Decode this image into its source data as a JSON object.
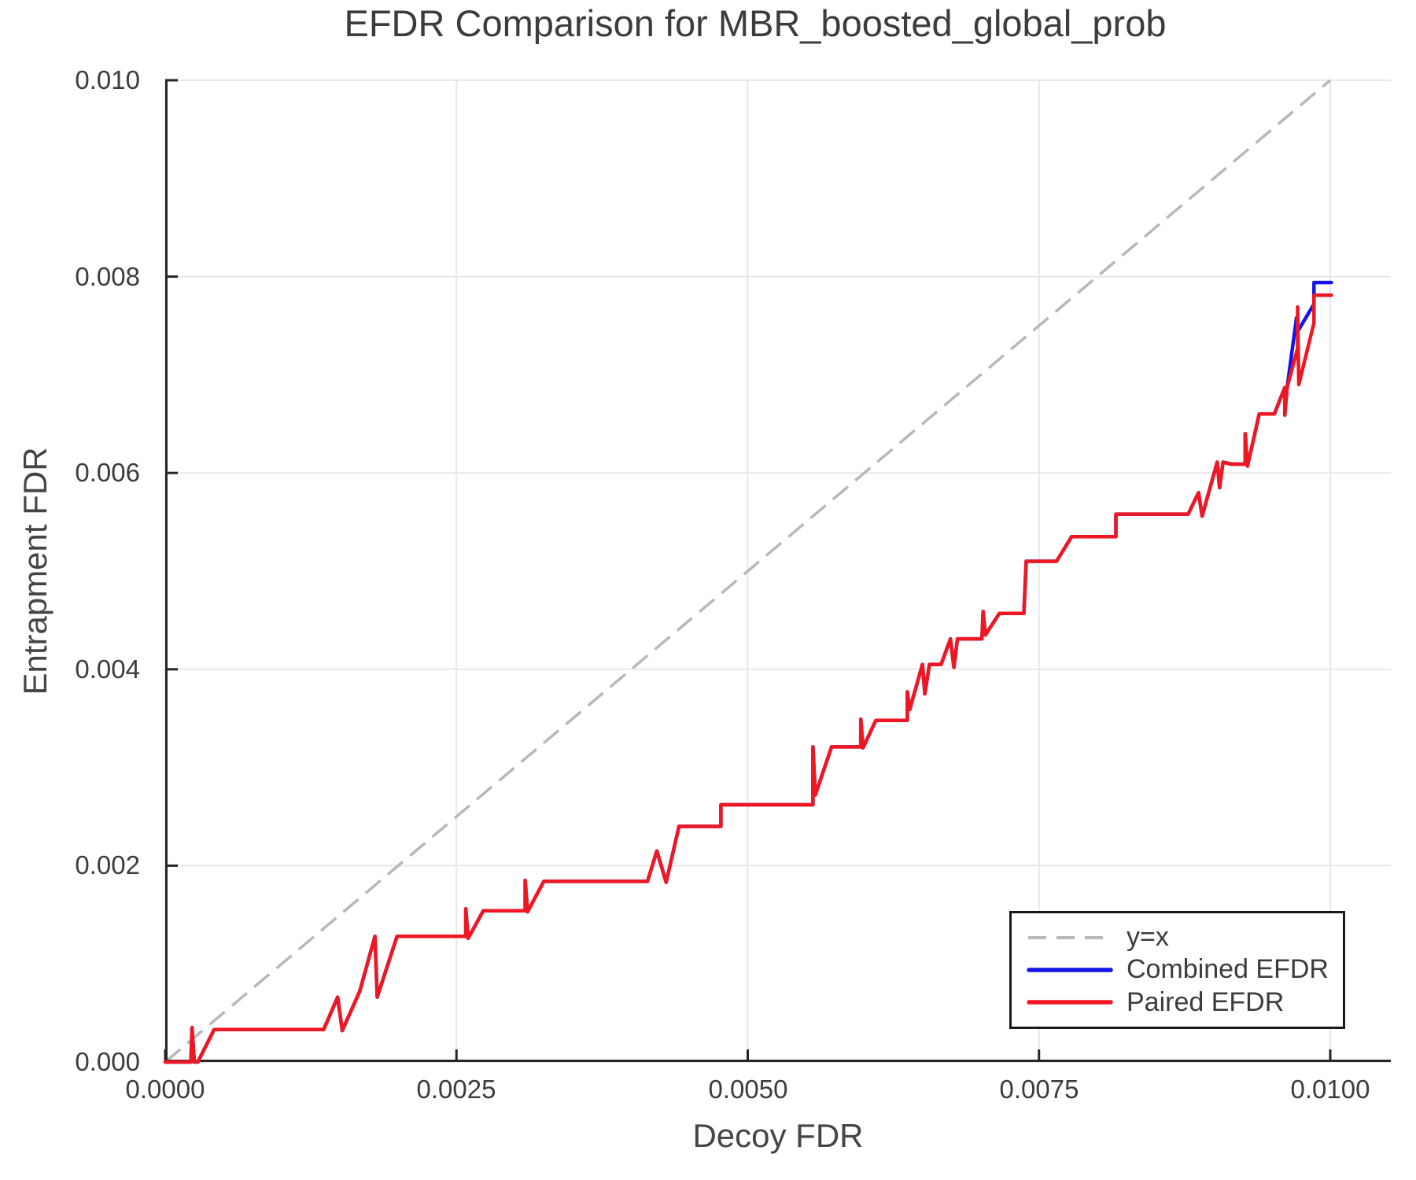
{
  "legend": {
    "items": [
      {
        "label": "y=x",
        "color": "#b8b8b8",
        "style": "dashed"
      },
      {
        "label": "Combined EFDR",
        "color": "#1414e8",
        "style": "solid"
      },
      {
        "label": "Paired EFDR",
        "color": "#f01722",
        "style": "solid"
      }
    ]
  },
  "chart_data": {
    "type": "line",
    "title": "EFDR Comparison for MBR_boosted_global_prob",
    "xlabel": "Decoy FDR",
    "ylabel": "Entrapment FDR",
    "xlim": [
      0,
      0.010518
    ],
    "ylim": [
      0,
      0.01
    ],
    "grid": true,
    "legend_position": "lower right",
    "x_ticks": [
      0,
      0.0025,
      0.005,
      0.0075,
      0.01
    ],
    "x_tick_labels": [
      "0.0000",
      "0.0025",
      "0.0050",
      "0.0075",
      "0.0100"
    ],
    "y_ticks": [
      0,
      0.002,
      0.004,
      0.006,
      0.008,
      0.01
    ],
    "y_tick_labels": [
      "0.000",
      "0.002",
      "0.004",
      "0.006",
      "0.008",
      "0.010"
    ],
    "theme": {
      "grid_color": "#e8e8e8",
      "spine_color": "#262626",
      "tick_color": "#262626",
      "text_color": "#3c3c3c",
      "background": "#ffffff"
    },
    "reference_line": {
      "name": "y=x",
      "from": [
        0,
        0
      ],
      "to": [
        0.01,
        0.01
      ],
      "style": "dashed",
      "color": "#b8b8b8"
    },
    "series": [
      {
        "name": "Combined EFDR",
        "color": "#1414e8",
        "points": [
          [
            0.0,
            0.0
          ],
          [
            0.00022,
            0.0
          ],
          [
            0.00023,
            0.00035
          ],
          [
            0.00025,
            0.0
          ],
          [
            0.00028,
            0.0
          ],
          [
            0.00042,
            0.00033
          ],
          [
            0.00136,
            0.00033
          ],
          [
            0.00148,
            0.00066
          ],
          [
            0.00152,
            0.00032
          ],
          [
            0.00167,
            0.00072
          ],
          [
            0.0018,
            0.00128
          ],
          [
            0.00182,
            0.00066
          ],
          [
            0.00199,
            0.00128
          ],
          [
            0.00258,
            0.00128
          ],
          [
            0.00258,
            0.00156
          ],
          [
            0.0026,
            0.00126
          ],
          [
            0.00273,
            0.00154
          ],
          [
            0.00309,
            0.00154
          ],
          [
            0.00309,
            0.00185
          ],
          [
            0.00311,
            0.00153
          ],
          [
            0.00325,
            0.00184
          ],
          [
            0.00414,
            0.00184
          ],
          [
            0.00422,
            0.00215
          ],
          [
            0.0043,
            0.00183
          ],
          [
            0.00441,
            0.0024
          ],
          [
            0.00477,
            0.0024
          ],
          [
            0.00477,
            0.00262
          ],
          [
            0.00556,
            0.00262
          ],
          [
            0.00556,
            0.00321
          ],
          [
            0.00558,
            0.00272
          ],
          [
            0.00572,
            0.00321
          ],
          [
            0.00597,
            0.00321
          ],
          [
            0.00597,
            0.00349
          ],
          [
            0.00599,
            0.0032
          ],
          [
            0.0061,
            0.00348
          ],
          [
            0.00637,
            0.00348
          ],
          [
            0.00637,
            0.00377
          ],
          [
            0.00639,
            0.00359
          ],
          [
            0.0065,
            0.00405
          ],
          [
            0.00652,
            0.00375
          ],
          [
            0.00656,
            0.00405
          ],
          [
            0.00666,
            0.00405
          ],
          [
            0.00674,
            0.00431
          ],
          [
            0.00677,
            0.00402
          ],
          [
            0.0068,
            0.00431
          ],
          [
            0.00701,
            0.00431
          ],
          [
            0.00702,
            0.00459
          ],
          [
            0.00704,
            0.00435
          ],
          [
            0.00716,
            0.00457
          ],
          [
            0.00737,
            0.00457
          ],
          [
            0.00739,
            0.0051
          ],
          [
            0.00765,
            0.0051
          ],
          [
            0.00778,
            0.00535
          ],
          [
            0.00816,
            0.00535
          ],
          [
            0.00816,
            0.00558
          ],
          [
            0.00878,
            0.00558
          ],
          [
            0.00887,
            0.0058
          ],
          [
            0.0089,
            0.00556
          ],
          [
            0.00903,
            0.00611
          ],
          [
            0.00905,
            0.00585
          ],
          [
            0.00908,
            0.00611
          ],
          [
            0.00915,
            0.00609
          ],
          [
            0.00927,
            0.00609
          ],
          [
            0.00927,
            0.0064
          ],
          [
            0.00929,
            0.00607
          ],
          [
            0.00939,
            0.0066
          ],
          [
            0.00952,
            0.0066
          ],
          [
            0.00961,
            0.00687
          ],
          [
            0.00961,
            0.00659
          ],
          [
            0.00963,
            0.00687
          ],
          [
            0.00971,
            0.00758
          ],
          [
            0.00972,
            0.00744
          ],
          [
            0.00986,
            0.00772
          ],
          [
            0.00986,
            0.00794
          ],
          [
            0.01001,
            0.00794
          ]
        ]
      },
      {
        "name": "Paired EFDR",
        "color": "#f01722",
        "points": [
          [
            0.0,
            0.0
          ],
          [
            0.00022,
            0.0
          ],
          [
            0.00023,
            0.00035
          ],
          [
            0.00025,
            0.0
          ],
          [
            0.00028,
            0.0
          ],
          [
            0.00042,
            0.00033
          ],
          [
            0.00136,
            0.00033
          ],
          [
            0.00148,
            0.00066
          ],
          [
            0.00152,
            0.00032
          ],
          [
            0.00167,
            0.00072
          ],
          [
            0.0018,
            0.00128
          ],
          [
            0.00182,
            0.00066
          ],
          [
            0.00199,
            0.00128
          ],
          [
            0.00258,
            0.00128
          ],
          [
            0.00258,
            0.00156
          ],
          [
            0.0026,
            0.00126
          ],
          [
            0.00273,
            0.00154
          ],
          [
            0.00309,
            0.00154
          ],
          [
            0.00309,
            0.00185
          ],
          [
            0.00311,
            0.00153
          ],
          [
            0.00325,
            0.00184
          ],
          [
            0.00414,
            0.00184
          ],
          [
            0.00422,
            0.00215
          ],
          [
            0.0043,
            0.00183
          ],
          [
            0.00441,
            0.0024
          ],
          [
            0.00477,
            0.0024
          ],
          [
            0.00477,
            0.00262
          ],
          [
            0.00556,
            0.00262
          ],
          [
            0.00556,
            0.00321
          ],
          [
            0.00558,
            0.00272
          ],
          [
            0.00572,
            0.00321
          ],
          [
            0.00597,
            0.00321
          ],
          [
            0.00597,
            0.00349
          ],
          [
            0.00599,
            0.0032
          ],
          [
            0.0061,
            0.00348
          ],
          [
            0.00637,
            0.00348
          ],
          [
            0.00637,
            0.00377
          ],
          [
            0.00639,
            0.00359
          ],
          [
            0.0065,
            0.00405
          ],
          [
            0.00652,
            0.00375
          ],
          [
            0.00656,
            0.00405
          ],
          [
            0.00666,
            0.00405
          ],
          [
            0.00674,
            0.00431
          ],
          [
            0.00677,
            0.00402
          ],
          [
            0.0068,
            0.00431
          ],
          [
            0.00701,
            0.00431
          ],
          [
            0.00702,
            0.00459
          ],
          [
            0.00704,
            0.00435
          ],
          [
            0.00716,
            0.00457
          ],
          [
            0.00737,
            0.00457
          ],
          [
            0.00739,
            0.0051
          ],
          [
            0.00765,
            0.0051
          ],
          [
            0.00778,
            0.00535
          ],
          [
            0.00816,
            0.00535
          ],
          [
            0.00816,
            0.00558
          ],
          [
            0.00878,
            0.00558
          ],
          [
            0.00887,
            0.0058
          ],
          [
            0.0089,
            0.00556
          ],
          [
            0.00903,
            0.00611
          ],
          [
            0.00905,
            0.00585
          ],
          [
            0.00908,
            0.00611
          ],
          [
            0.00915,
            0.00609
          ],
          [
            0.00927,
            0.00609
          ],
          [
            0.00927,
            0.0064
          ],
          [
            0.00929,
            0.00607
          ],
          [
            0.00939,
            0.0066
          ],
          [
            0.00952,
            0.0066
          ],
          [
            0.00961,
            0.00687
          ],
          [
            0.00961,
            0.00659
          ],
          [
            0.00963,
            0.00687
          ],
          [
            0.00972,
            0.00727
          ],
          [
            0.00972,
            0.00769
          ],
          [
            0.00973,
            0.0069
          ],
          [
            0.00986,
            0.00753
          ],
          [
            0.00986,
            0.00781
          ],
          [
            0.01001,
            0.00781
          ]
        ]
      }
    ]
  }
}
